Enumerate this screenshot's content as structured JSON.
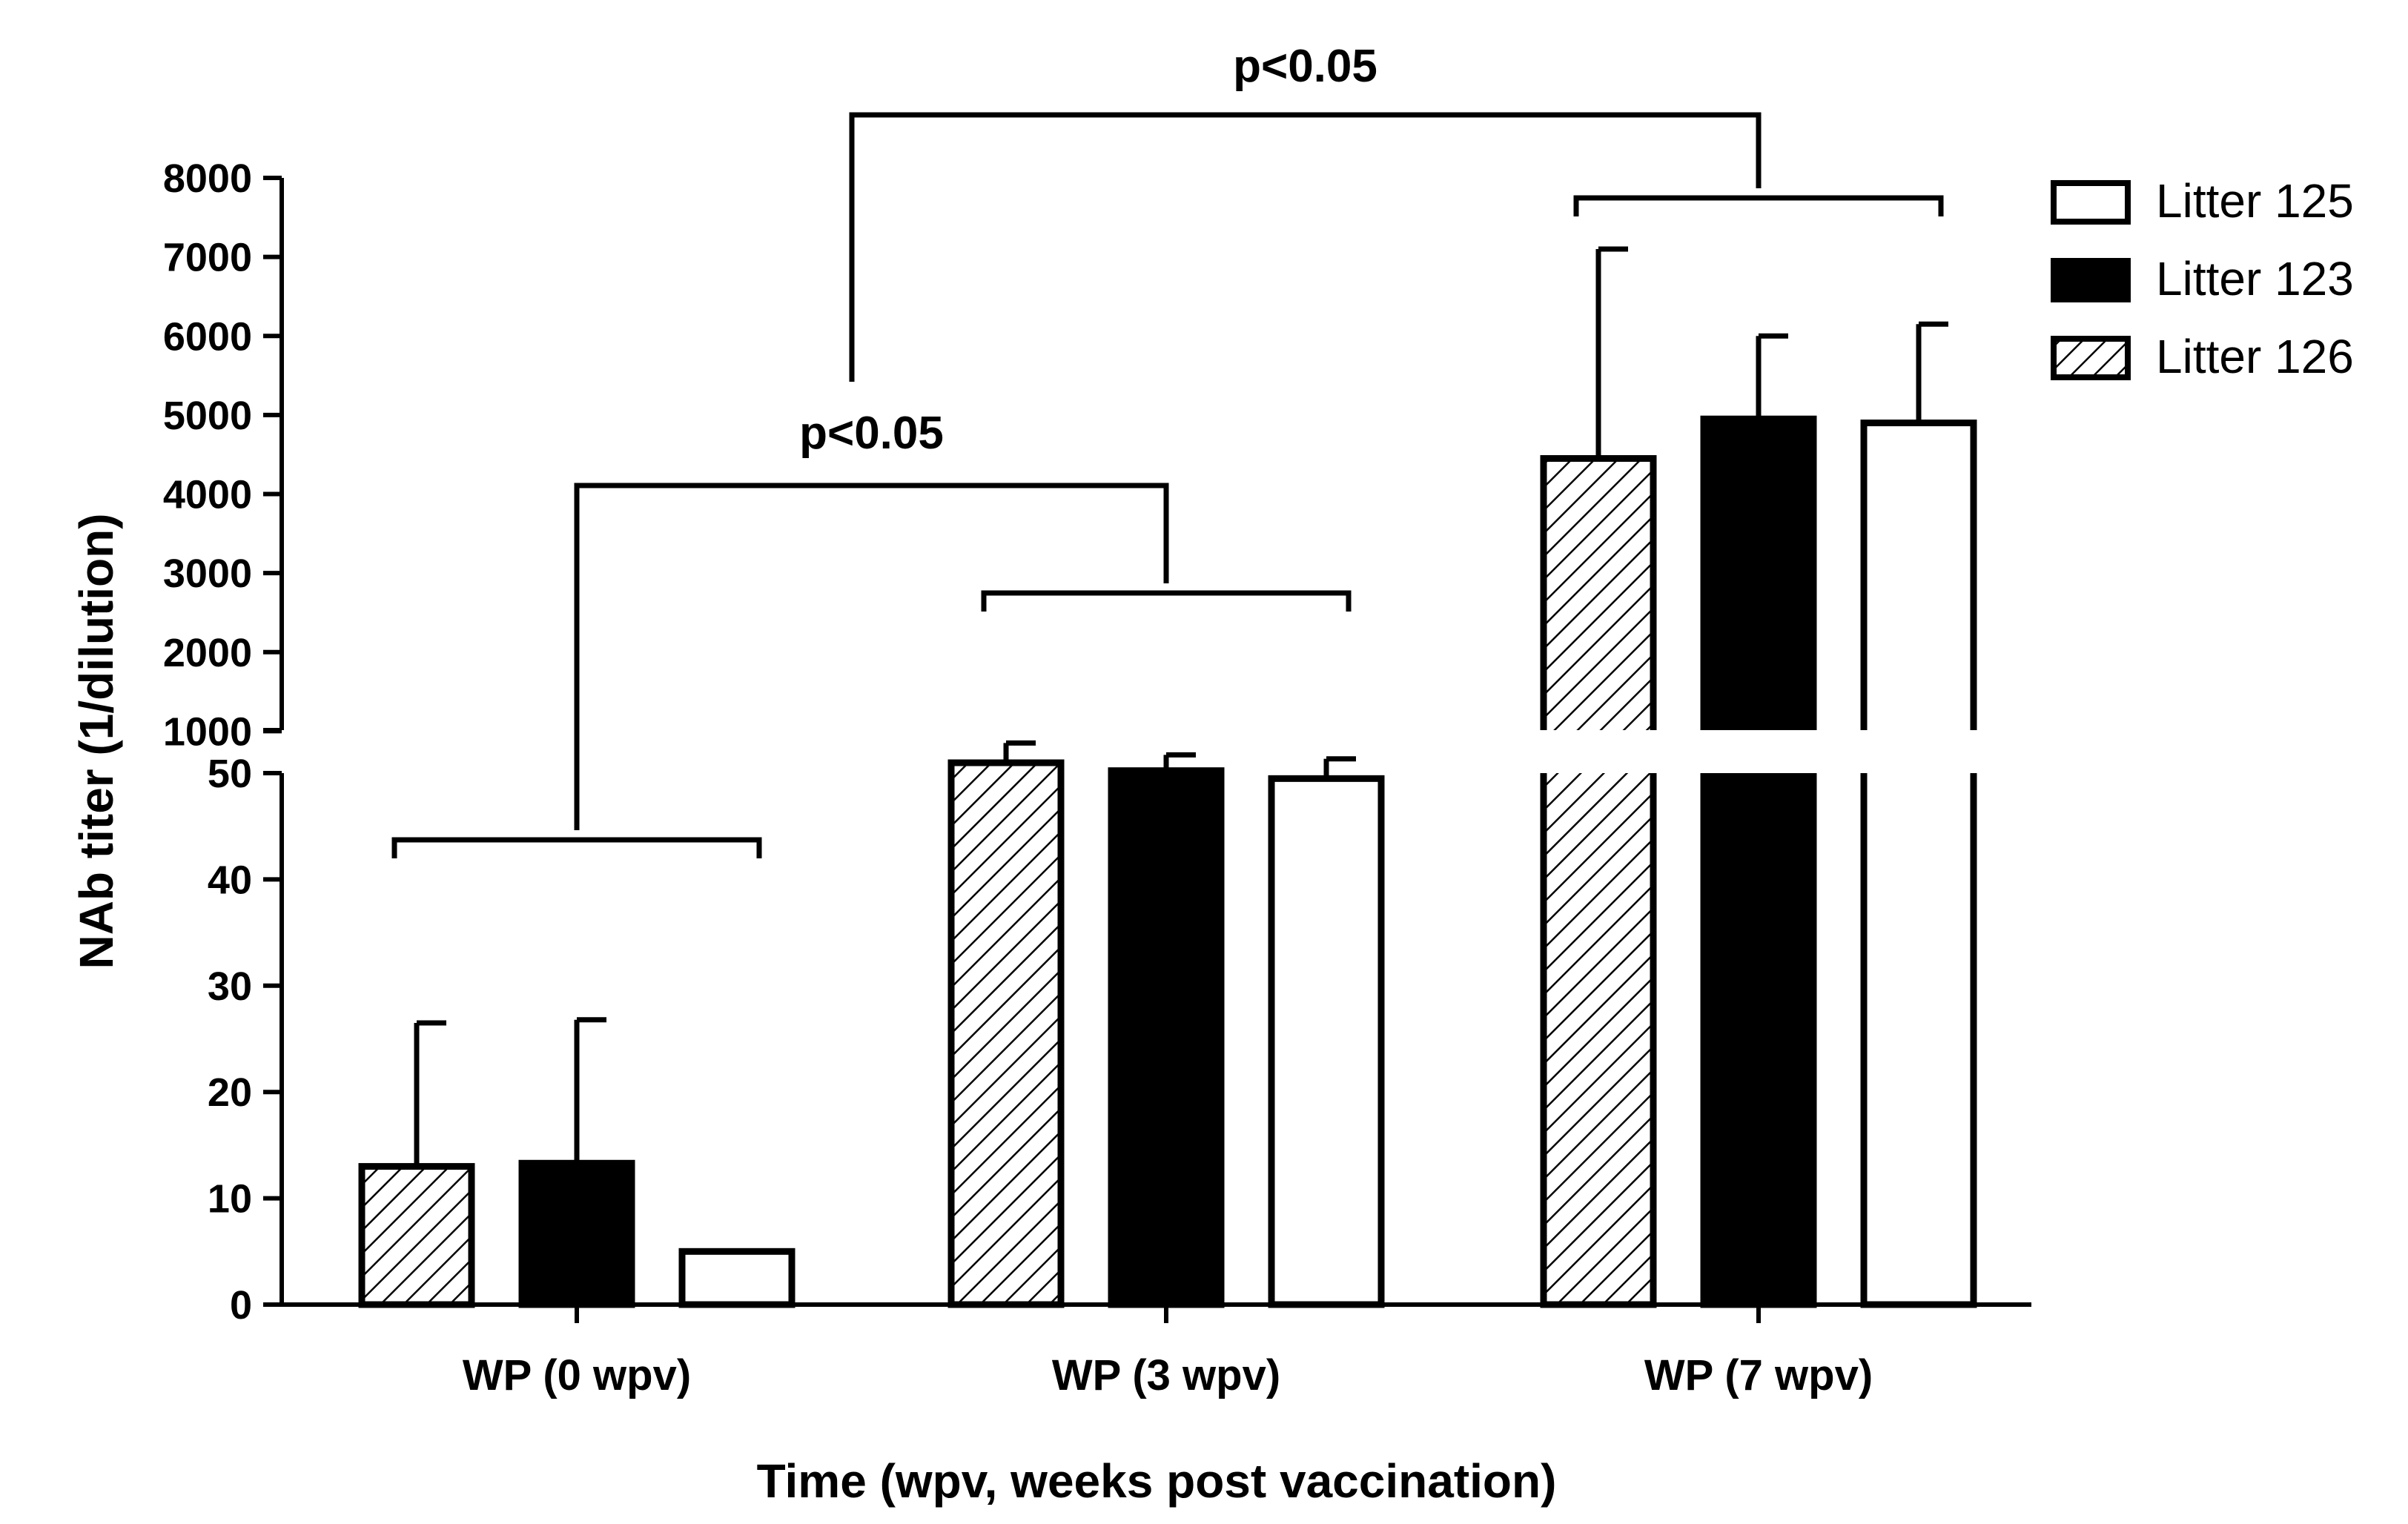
{
  "chart_data": {
    "type": "bar",
    "categories": [
      "WP (0 wpv)",
      "WP (3 wpv)",
      "WP (7 wpv)"
    ],
    "series": [
      {
        "name": "Litter 126",
        "values": [
          13,
          600,
          4450
        ],
        "errors": [
          13.5,
          250,
          2650
        ]
      },
      {
        "name": "Litter 123",
        "values": [
          13.3,
          500,
          4950
        ],
        "errors": [
          13.5,
          200,
          1050
        ]
      },
      {
        "name": "Litter 125",
        "values": [
          5,
          400,
          4900
        ],
        "errors": [
          0,
          250,
          1250
        ]
      }
    ],
    "xlabel": "Time (wpv, weeks post vaccination)",
    "ylabel": "NAb titer (1/dilution)",
    "y_axis_break": true,
    "y_lower_segment": {
      "range": [
        0,
        50
      ],
      "ticks": [
        0,
        10,
        20,
        30,
        40,
        50
      ]
    },
    "y_upper_segment": {
      "range": [
        0,
        8000
      ],
      "ticks": [
        1000,
        2000,
        3000,
        4000,
        5000,
        6000,
        7000,
        8000
      ]
    },
    "legend_order": [
      "Litter 125",
      "Litter 123",
      "Litter 126"
    ],
    "legend_position": "top-right",
    "significance": [
      {
        "label": "p<0.05",
        "between": [
          "WP (0 wpv)",
          "WP (3 wpv)"
        ]
      },
      {
        "label": "p<0.05",
        "between": [
          "WP (0 wpv)",
          "WP (7 wpv)"
        ]
      }
    ],
    "colors": {
      "Litter 126": "hatched",
      "Litter 123": "#000000",
      "Litter 125": "#ffffff"
    },
    "grid": false
  }
}
